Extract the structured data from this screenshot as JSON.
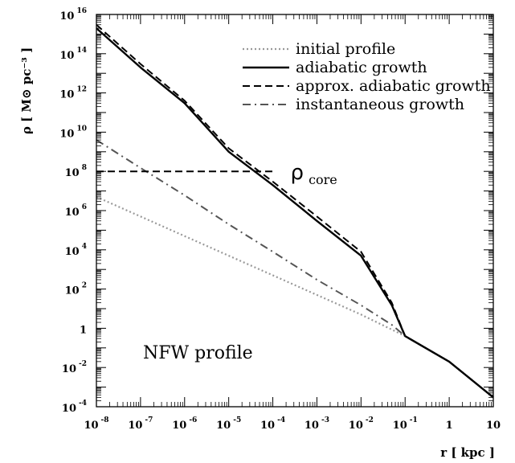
{
  "chart_data": {
    "type": "line",
    "title": "",
    "xlabel": "r [ kpc ]",
    "ylabel": "ρ [ M⊙ pc⁻³ ]",
    "x_scale": "log",
    "y_scale": "log",
    "xlim": [
      1e-08,
      10
    ],
    "ylim": [
      0.0001,
      1e+16
    ],
    "x_ticks": [
      {
        "base": "10",
        "exp": "-8"
      },
      {
        "base": "10",
        "exp": "-7"
      },
      {
        "base": "10",
        "exp": "-6"
      },
      {
        "base": "10",
        "exp": "-5"
      },
      {
        "base": "10",
        "exp": "-4"
      },
      {
        "base": "10",
        "exp": "-3"
      },
      {
        "base": "10",
        "exp": "-2"
      },
      {
        "base": "10",
        "exp": "-1"
      },
      {
        "base": "1",
        "exp": ""
      },
      {
        "base": "10",
        "exp": ""
      }
    ],
    "y_ticks": [
      {
        "base": "10",
        "exp": "-4"
      },
      {
        "base": "10",
        "exp": "-2"
      },
      {
        "base": "1",
        "exp": ""
      },
      {
        "base": "10",
        "exp": "2"
      },
      {
        "base": "10",
        "exp": "4"
      },
      {
        "base": "10",
        "exp": "6"
      },
      {
        "base": "10",
        "exp": "8"
      },
      {
        "base": "10",
        "exp": "10"
      },
      {
        "base": "10",
        "exp": "12"
      },
      {
        "base": "10",
        "exp": "14"
      },
      {
        "base": "10",
        "exp": "16"
      }
    ],
    "legend_position": "top-right",
    "series": [
      {
        "name": "initial profile",
        "style": "dotted",
        "color": "#999999",
        "x": [
          1e-08,
          1e-07,
          1e-06,
          1e-05,
          0.0001,
          0.001,
          0.01,
          0.1,
          1,
          10
        ],
        "y": [
          5000000.0,
          500000.0,
          50000.0,
          5000.0,
          500,
          50,
          5,
          0.4,
          0.02,
          0.0003
        ]
      },
      {
        "name": "adiabatic growth",
        "style": "solid",
        "color": "#000000",
        "x": [
          1e-08,
          1e-07,
          1e-06,
          1e-05,
          0.0001,
          0.001,
          0.01,
          0.05,
          0.1,
          1,
          10
        ],
        "y": [
          2000000000000000.0,
          20000000000000.0,
          300000000000.0,
          1000000000.0,
          20000000.0,
          300000.0,
          5000.0,
          15,
          0.4,
          0.02,
          0.0003
        ]
      },
      {
        "name": "approx. adiabatic growth",
        "style": "dashed",
        "color": "#000000",
        "x": [
          1e-08,
          1e-07,
          1e-06,
          1e-05,
          0.0001,
          0.001,
          0.01,
          0.05,
          0.1,
          1,
          10
        ],
        "y": [
          3000000000000000.0,
          30000000000000.0,
          400000000000.0,
          1500000000.0,
          30000000.0,
          500000.0,
          8000.0,
          20,
          0.4,
          0.02,
          0.0003
        ]
      },
      {
        "name": "instantaneous growth",
        "style": "dashdot",
        "color": "#555555",
        "x": [
          1e-08,
          1e-07,
          1e-06,
          1e-05,
          0.0001,
          0.001,
          0.01,
          0.05,
          0.1
        ],
        "y": [
          4000000000.0,
          150000000.0,
          6000000.0,
          200000.0,
          8000.0,
          300,
          15,
          1.5,
          0.4
        ]
      }
    ],
    "reference_lines": [
      {
        "label": "ρ",
        "label_sub": "core",
        "y": 100000000.0,
        "x_range": [
          1e-08,
          0.0001
        ],
        "style": "dashed"
      }
    ],
    "annotations": [
      {
        "text": "NFW profile",
        "position": "bottom-left"
      }
    ]
  }
}
